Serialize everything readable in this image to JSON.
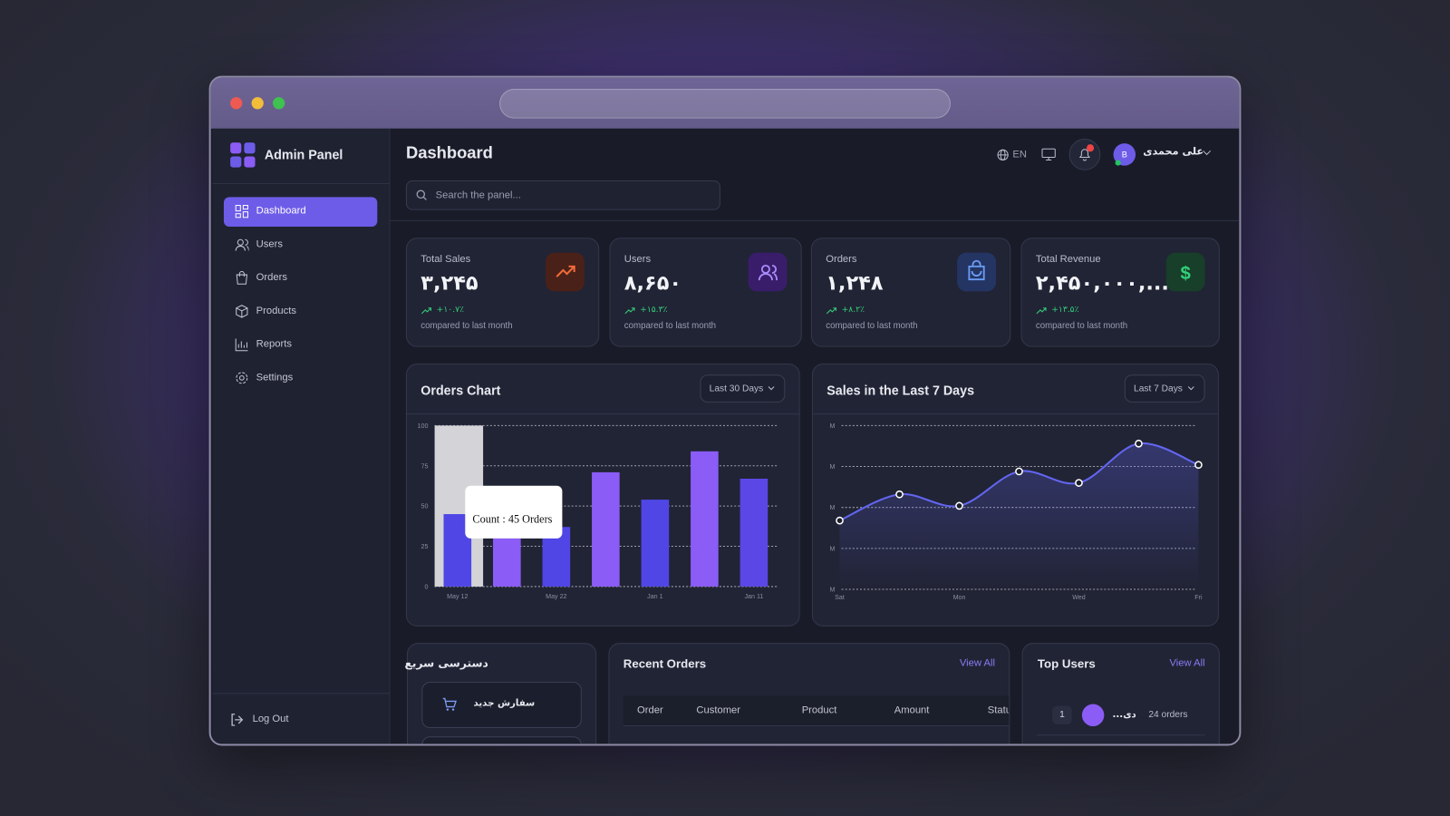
{
  "sidebar": {
    "brand": "Admin Panel",
    "nav": [
      "Dashboard",
      "Users",
      "Orders",
      "Products",
      "Reports",
      "Settings"
    ],
    "logout": "Log Out"
  },
  "header": {
    "title": "Dashboard",
    "search_placeholder": "Search the panel...",
    "language": "EN",
    "user_initial": "B",
    "user_name": "علی محمدی"
  },
  "stats": [
    {
      "label": "Total Sales",
      "value": "۳,۲۴۵",
      "change": "+۱۰.۷٪",
      "note": "compared to last month"
    },
    {
      "label": "Users",
      "value": "۸,۶۵۰",
      "change": "+۱۵.۳٪",
      "note": "compared to last month"
    },
    {
      "label": "Orders",
      "value": "۱,۲۴۸",
      "change": "+۸.۲٪",
      "note": "compared to last month"
    },
    {
      "label": "Total Revenue",
      "value": "۲,۴۵۰,۰۰۰,...",
      "change": "+۱۳.۵٪",
      "note": "compared to last month"
    }
  ],
  "chart_data": [
    {
      "type": "bar",
      "title": "Orders Chart",
      "range": "Last 30 Days",
      "categories": [
        "May 12",
        null,
        "May 22",
        null,
        "Jan 1",
        null,
        "Jan 11"
      ],
      "values": [
        45,
        30,
        37,
        71,
        54,
        84,
        67
      ],
      "colors": [
        "#4f46e5",
        "#8b5cf6",
        "#4f46e5",
        "#8b5cf6",
        "#4f46e5",
        "#8b5cf6",
        "#5b47e6"
      ],
      "ylim": [
        0,
        100
      ],
      "yticks": [
        0,
        25,
        50,
        75,
        100
      ],
      "grid": true,
      "tooltip": "Count : 45 Orders"
    },
    {
      "type": "line",
      "title": "Sales in the Last 7 Days",
      "range": "Last 7 Days",
      "categories": [
        "Sat",
        null,
        "Mon",
        null,
        "Wed",
        null,
        "Fri"
      ],
      "values": [
        42,
        58,
        51,
        72,
        65,
        89,
        76
      ],
      "color": "#6366f1",
      "ylim": [
        0,
        100
      ],
      "yticks": [
        {
          "value": 0,
          "label": "M"
        },
        {
          "value": 25,
          "label": "M"
        },
        {
          "value": 50,
          "label": "M"
        },
        {
          "value": 75,
          "label": "M"
        },
        {
          "value": 100,
          "label": "M"
        }
      ],
      "grid": true
    }
  ],
  "quick_access": {
    "title": "دسترسی سریع",
    "items": [
      "سفارش جدید"
    ]
  },
  "recent_orders": {
    "title": "Recent Orders",
    "link": "View All",
    "columns": [
      "Order",
      "Customer",
      "Product",
      "Amount",
      "Status"
    ]
  },
  "top_users": {
    "title": "Top Users",
    "link": "View All",
    "rows": [
      {
        "rank": "1",
        "name": "...دی",
        "orders": "24 orders"
      }
    ]
  }
}
